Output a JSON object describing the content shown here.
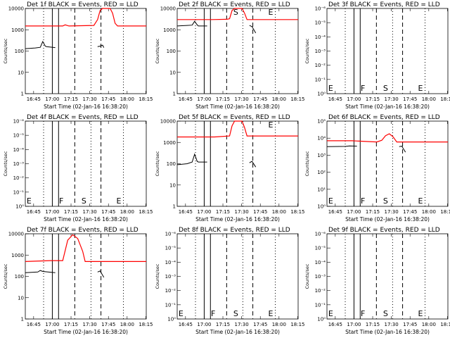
{
  "chart_data": [
    {
      "type": "line",
      "title": "Det 1f BLACK = Events, RED = LLD",
      "ylabel": "Counts/sec",
      "xlabel": "Start Time (02-Jan-16 16:38:20)",
      "x_ticks": [
        "16:45",
        "17:00",
        "17:15",
        "17:30",
        "17:45",
        "18:00",
        "18:15"
      ],
      "y_scale": "log",
      "ylim": [
        1,
        10000
      ],
      "y_ticks": [
        "1",
        "10",
        "100",
        "1000",
        "10000"
      ],
      "markers": [],
      "series": [
        {
          "color": "#ff0000",
          "points": [
            [
              0,
              1500
            ],
            [
              30,
              1500
            ],
            [
              32,
              1700
            ],
            [
              35,
              1500
            ],
            [
              55,
              1600
            ],
            [
              58,
              3000
            ],
            [
              60,
              8000
            ],
            [
              62,
              12000
            ],
            [
              68,
              12000
            ],
            [
              70,
              6000
            ],
            [
              72,
              2000
            ],
            [
              74,
              1500
            ],
            [
              97,
              1500
            ]
          ]
        },
        {
          "color": "#000000",
          "segments": [
            [
              [
                0,
                130
              ],
              [
                8,
                140
              ],
              [
                12,
                150
              ],
              [
                14,
                280
              ],
              [
                16,
                170
              ],
              [
                17,
                160
              ],
              [
                24,
                145
              ]
            ],
            [
              [
                58,
                160
              ],
              [
                60,
                170
              ],
              [
                62,
                190
              ],
              [
                63,
                145
              ]
            ]
          ]
        }
      ]
    },
    {
      "type": "line",
      "title": "Det 2f BLACK = Events, RED = LLD",
      "ylabel": "Counts/sec",
      "xlabel": "Start Time (02-Jan-16 16:38:20)",
      "x_ticks": [
        "16:45",
        "17:00",
        "17:15",
        "17:30",
        "17:45",
        "18:00",
        "18:15"
      ],
      "y_scale": "log",
      "ylim": [
        1,
        10000
      ],
      "y_ticks": [
        "1",
        "10",
        "100",
        "1000",
        "10000"
      ],
      "markers": [
        "S",
        "E"
      ],
      "series": [
        {
          "color": "#ff0000",
          "points": [
            [
              0,
              3000
            ],
            [
              28,
              3000
            ],
            [
              40,
              3100
            ],
            [
              42,
              3300
            ],
            [
              44,
              8000
            ],
            [
              46,
              12000
            ],
            [
              52,
              12000
            ],
            [
              54,
              6000
            ],
            [
              56,
              3000
            ],
            [
              97,
              3000
            ]
          ]
        },
        {
          "color": "#000000",
          "segments": [
            [
              [
                0,
                1500
              ],
              [
                8,
                1600
              ],
              [
                12,
                1650
              ],
              [
                14,
                2500
              ],
              [
                16,
                1700
              ],
              [
                17,
                1500
              ],
              [
                24,
                1500
              ]
            ],
            [
              [
                58,
                1600
              ],
              [
                60,
                1400
              ],
              [
                63,
                700
              ]
            ]
          ]
        }
      ]
    },
    {
      "type": "line",
      "title": "Det 3f BLACK = Events, RED = LLD",
      "ylabel": "Counts/sec",
      "xlabel": "Start Time (02-Jan-16 16:38:20)",
      "x_ticks": [
        "16:45",
        "17:00",
        "17:15",
        "17:30",
        "17:45",
        "18:00",
        "18:15"
      ],
      "y_scale": "log",
      "ylim": [
        1e-06,
        1
      ],
      "y_ticks": [
        "10⁰",
        "10⁻¹",
        "10⁻²",
        "10⁻³",
        "10⁻⁴",
        "10⁻⁵",
        "10⁻⁶"
      ],
      "markers": [
        "E",
        "F",
        "S",
        "E"
      ],
      "series": []
    },
    {
      "type": "line",
      "title": "Det 4f BLACK = Events, RED = LLD",
      "ylabel": "Counts/sec",
      "xlabel": "Start Time (02-Jan-16 16:38:20)",
      "x_ticks": [
        "16:45",
        "17:00",
        "17:15",
        "17:30",
        "17:45",
        "18:00",
        "18:15"
      ],
      "y_scale": "log",
      "ylim": [
        1e-06,
        1
      ],
      "y_ticks": [
        "10⁰",
        "10⁻¹",
        "10⁻²",
        "10⁻³",
        "10⁻⁴",
        "10⁻⁵",
        "10⁻⁶"
      ],
      "markers": [
        "E",
        "F",
        "S",
        "E"
      ],
      "series": []
    },
    {
      "type": "line",
      "title": "Det 5f BLACK = Events, RED = LLD",
      "ylabel": "Counts/sec",
      "xlabel": "Start Time (02-Jan-16 16:38:20)",
      "x_ticks": [
        "16:45",
        "17:00",
        "17:15",
        "17:30",
        "17:45",
        "18:00",
        "18:15"
      ],
      "y_scale": "log",
      "ylim": [
        1,
        10000
      ],
      "y_ticks": [
        "1",
        "10",
        "100",
        "1000",
        "10000"
      ],
      "markers": [
        "E"
      ],
      "series": [
        {
          "color": "#ff0000",
          "points": [
            [
              0,
              1800
            ],
            [
              30,
              1800
            ],
            [
              42,
              2000
            ],
            [
              44,
              6000
            ],
            [
              46,
              12000
            ],
            [
              52,
              12000
            ],
            [
              54,
              5000
            ],
            [
              56,
              2000
            ],
            [
              97,
              2000
            ]
          ]
        },
        {
          "color": "#000000",
          "segments": [
            [
              [
                0,
                90
              ],
              [
                8,
                100
              ],
              [
                12,
                120
              ],
              [
                14,
                280
              ],
              [
                16,
                130
              ],
              [
                17,
                120
              ],
              [
                24,
                120
              ]
            ],
            [
              [
                58,
                110
              ],
              [
                60,
                130
              ],
              [
                63,
                70
              ]
            ]
          ]
        }
      ]
    },
    {
      "type": "line",
      "title": "Det 6f BLACK = Events, RED = LLD",
      "ylabel": "Counts/sec",
      "xlabel": "Start Time (02-Jan-16 16:38:20)",
      "x_ticks": [
        "16:45",
        "17:00",
        "17:15",
        "17:30",
        "17:45",
        "18:00",
        "18:15"
      ],
      "y_scale": "log",
      "ylim": [
        1,
        100000
      ],
      "y_ticks": [
        "10⁰",
        "10¹",
        "10²",
        "10³",
        "10⁴",
        "10⁵"
      ],
      "markers": [
        "E",
        "F",
        "S",
        "E"
      ],
      "series": [
        {
          "color": "#ff0000",
          "points": [
            [
              0,
              7000
            ],
            [
              20,
              7000
            ],
            [
              40,
              6000
            ],
            [
              44,
              7500
            ],
            [
              47,
              14000
            ],
            [
              50,
              18000
            ],
            [
              53,
              12000
            ],
            [
              56,
              6000
            ],
            [
              97,
              6000
            ]
          ]
        },
        {
          "color": "#000000",
          "segments": [
            [
              [
                0,
                3200
              ],
              [
                15,
                3300
              ],
              [
                18,
                3500
              ],
              [
                24,
                3400
              ]
            ],
            [
              [
                58,
                3200
              ],
              [
                60,
                3400
              ],
              [
                63,
                1500
              ]
            ]
          ]
        }
      ]
    },
    {
      "type": "line",
      "title": "Det 7f BLACK = Events, RED = LLD",
      "ylabel": "Counts/sec",
      "xlabel": "Start Time (02-Jan-16 16:38:20)",
      "x_ticks": [
        "16:45",
        "17:00",
        "17:15",
        "17:30",
        "17:45",
        "18:00",
        "18:15"
      ],
      "y_scale": "log",
      "ylim": [
        1,
        10000
      ],
      "y_ticks": [
        "1",
        "10",
        "100",
        "1000",
        "10000"
      ],
      "markers": [],
      "series": [
        {
          "color": "#ff0000",
          "points": [
            [
              0,
              500
            ],
            [
              20,
              550
            ],
            [
              30,
              550
            ],
            [
              34,
              5000
            ],
            [
              38,
              9000
            ],
            [
              42,
              6000
            ],
            [
              46,
              1500
            ],
            [
              48,
              500
            ],
            [
              97,
              500
            ]
          ]
        },
        {
          "color": "#000000",
          "segments": [
            [
              [
                0,
                150
              ],
              [
                10,
                160
              ],
              [
                12,
                190
              ],
              [
                14,
                170
              ],
              [
                24,
                150
              ]
            ],
            [
              [
                58,
                160
              ],
              [
                60,
                180
              ],
              [
                63,
                90
              ]
            ]
          ]
        }
      ]
    },
    {
      "type": "line",
      "title": "Det 8f BLACK = Events, RED = LLD",
      "ylabel": "Counts/sec",
      "xlabel": "Start Time (02-Jan-16 16:38:20)",
      "x_ticks": [
        "16:45",
        "17:00",
        "17:15",
        "17:30",
        "17:45",
        "18:00",
        "18:15"
      ],
      "y_scale": "log",
      "ylim": [
        1e-06,
        1
      ],
      "y_ticks": [
        "10⁰",
        "10⁻¹",
        "10⁻²",
        "10⁻³",
        "10⁻⁴",
        "10⁻⁵",
        "10⁻⁶"
      ],
      "markers": [
        "E",
        "F",
        "S",
        "E"
      ],
      "series": []
    },
    {
      "type": "line",
      "title": "Det 9f BLACK = Events, RED = LLD",
      "ylabel": "Counts/sec",
      "xlabel": "Start Time (02-Jan-16 16:38:20)",
      "x_ticks": [
        "16:45",
        "17:00",
        "17:15",
        "17:30",
        "17:45",
        "18:00",
        "18:15"
      ],
      "y_scale": "log",
      "ylim": [
        1e-06,
        1
      ],
      "y_ticks": [
        "10⁰",
        "10⁻¹",
        "10⁻²",
        "10⁻³",
        "10⁻⁴",
        "10⁻⁵",
        "10⁻⁶"
      ],
      "markers": [
        "E",
        "F",
        "S",
        "E"
      ],
      "series": []
    }
  ]
}
